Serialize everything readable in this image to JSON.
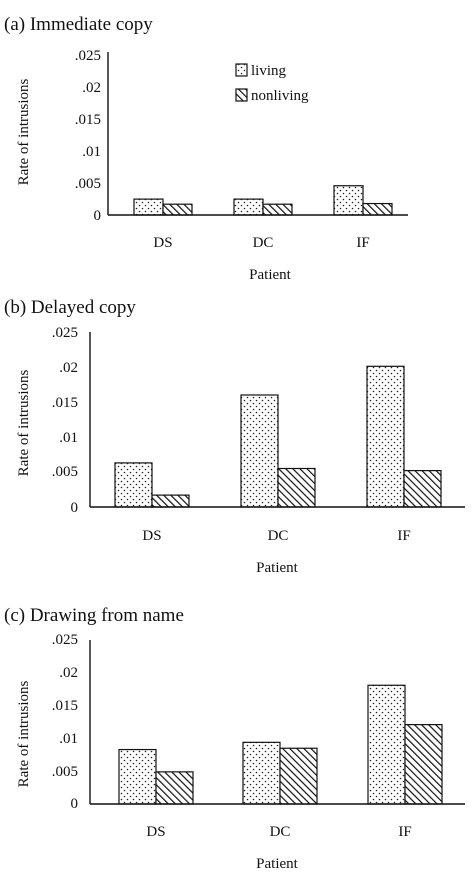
{
  "chart_data": [
    {
      "type": "bar",
      "title": "(a) Immediate copy",
      "xlabel": "Patient",
      "ylabel": "Rate of intrusions",
      "categories": [
        "DS",
        "DC",
        "IF"
      ],
      "ylim": [
        0,
        0.025
      ],
      "yticks": [
        0,
        0.005,
        0.01,
        0.015,
        0.02,
        0.025
      ],
      "yticklabels": [
        "0",
        ".005",
        ".01",
        ".015",
        ".02",
        ".025"
      ],
      "legend": {
        "position": "top-center"
      },
      "series": [
        {
          "name": "living",
          "pattern": "dots",
          "values": [
            0.0025,
            0.0025,
            0.0046
          ]
        },
        {
          "name": "nonliving",
          "pattern": "hatch",
          "values": [
            0.0017,
            0.0017,
            0.0018
          ]
        }
      ]
    },
    {
      "type": "bar",
      "title": "(b) Delayed copy",
      "xlabel": "Patient",
      "ylabel": "Rate of intrusions",
      "categories": [
        "DS",
        "DC",
        "IF"
      ],
      "ylim": [
        0,
        0.025
      ],
      "yticks": [
        0,
        0.005,
        0.01,
        0.015,
        0.02,
        0.025
      ],
      "yticklabels": [
        "0",
        ".005",
        ".01",
        ".015",
        ".02",
        ".025"
      ],
      "series": [
        {
          "name": "living",
          "pattern": "dots",
          "values": [
            0.0063,
            0.016,
            0.0201
          ]
        },
        {
          "name": "nonliving",
          "pattern": "hatch",
          "values": [
            0.0017,
            0.0055,
            0.0052
          ]
        }
      ]
    },
    {
      "type": "bar",
      "title": "(c) Drawing from name",
      "xlabel": "Patient",
      "ylabel": "Rate of intrusions",
      "categories": [
        "DS",
        "DC",
        "IF"
      ],
      "ylim": [
        0,
        0.025
      ],
      "yticks": [
        0,
        0.005,
        0.01,
        0.015,
        0.02,
        0.025
      ],
      "yticklabels": [
        "0",
        ".005",
        ".01",
        ".015",
        ".02",
        ".025"
      ],
      "series": [
        {
          "name": "living",
          "pattern": "dots",
          "values": [
            0.0083,
            0.0094,
            0.0181
          ]
        },
        {
          "name": "nonliving",
          "pattern": "hatch",
          "values": [
            0.0049,
            0.0085,
            0.0121
          ]
        }
      ]
    }
  ]
}
